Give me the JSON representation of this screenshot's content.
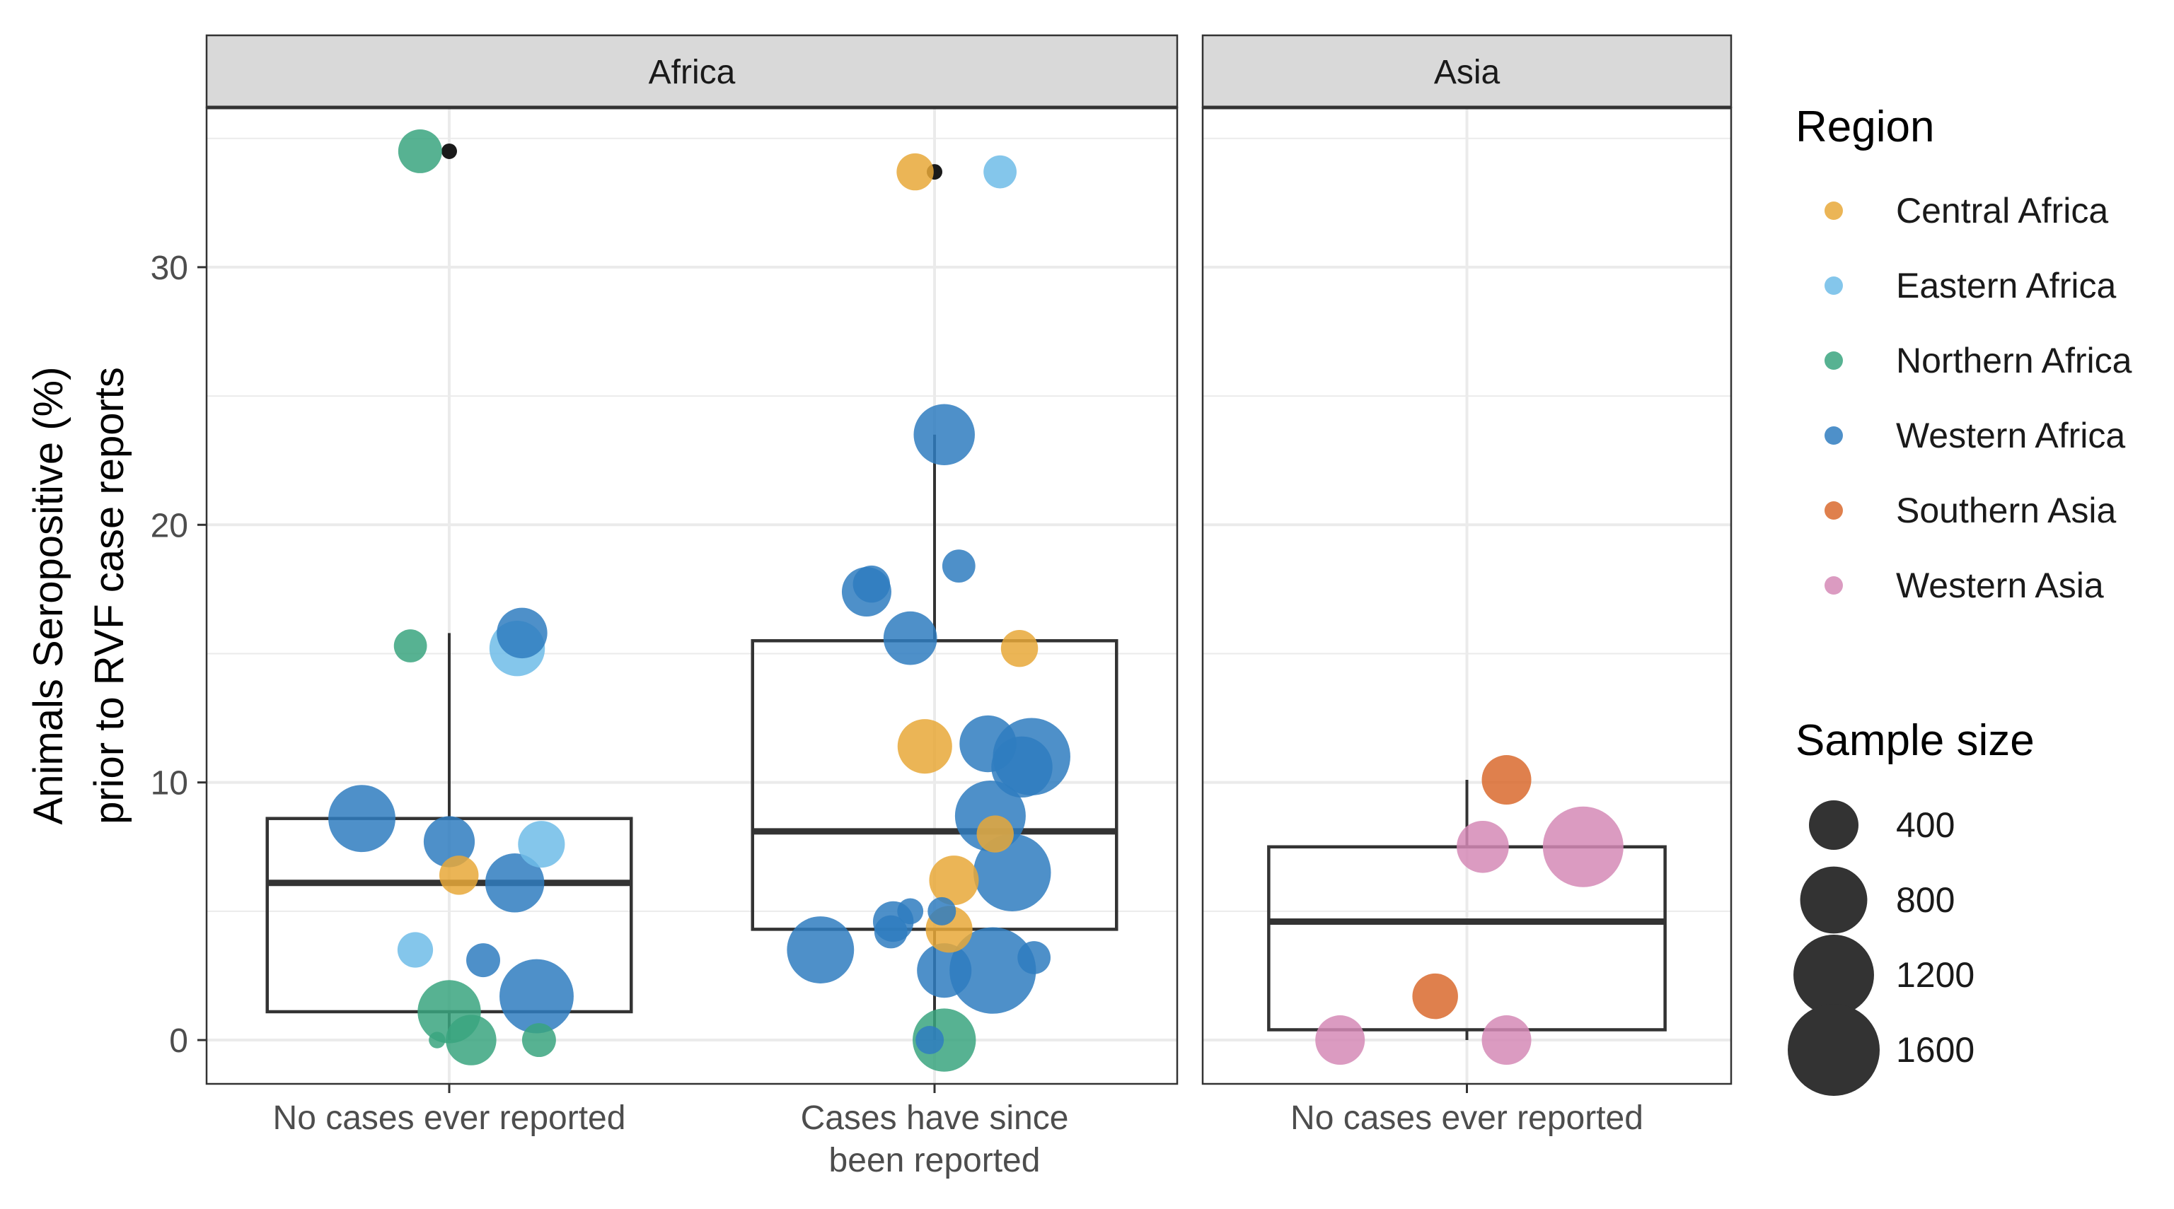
{
  "chart_data": {
    "type": "boxplot-jitter",
    "ylabel_lines": [
      "Animals Seropositive (%)",
      "prior to RVF case reports"
    ],
    "ylim": [
      -1.7,
      36.2
    ],
    "y_ticks": [
      0,
      10,
      20,
      30
    ],
    "y_tick_labels": [
      "0",
      "10",
      "20",
      "30"
    ],
    "y_minor": [
      5,
      15,
      25,
      35
    ],
    "panels": [
      {
        "title": "Africa",
        "groups": [
          {
            "label_lines": [
              "No cases ever reported"
            ],
            "box": {
              "q1": 1.1,
              "median": 6.1,
              "q3": 8.6,
              "whisker_low": 0,
              "whisker_high": 15.8
            },
            "outliers": [
              34.5
            ],
            "points": [
              {
                "y": 34.5,
                "region": "Northern Africa",
                "n": 300,
                "dx": -0.12
              },
              {
                "y": 15.3,
                "region": "Northern Africa",
                "n": 150,
                "dx": -0.16
              },
              {
                "y": 15.2,
                "region": "Eastern Africa",
                "n": 520,
                "dx": 0.28
              },
              {
                "y": 15.8,
                "region": "Western Africa",
                "n": 420,
                "dx": 0.3
              },
              {
                "y": 8.6,
                "region": "Western Africa",
                "n": 800,
                "dx": -0.36
              },
              {
                "y": 7.7,
                "region": "Western Africa",
                "n": 430,
                "dx": 0.0
              },
              {
                "y": 7.6,
                "region": "Eastern Africa",
                "n": 350,
                "dx": 0.38
              },
              {
                "y": 6.4,
                "region": "Central Africa",
                "n": 230,
                "dx": 0.04
              },
              {
                "y": 6.1,
                "region": "Western Africa",
                "n": 600,
                "dx": 0.27
              },
              {
                "y": 3.5,
                "region": "Eastern Africa",
                "n": 180,
                "dx": -0.14
              },
              {
                "y": 3.1,
                "region": "Western Africa",
                "n": 160,
                "dx": 0.14
              },
              {
                "y": 1.7,
                "region": "Western Africa",
                "n": 1000,
                "dx": 0.36
              },
              {
                "y": 1.1,
                "region": "Northern Africa",
                "n": 700,
                "dx": 0.0
              },
              {
                "y": 0.0,
                "region": "Northern Africa",
                "n": 420,
                "dx": 0.09
              },
              {
                "y": 0.0,
                "region": "Northern Africa",
                "n": 160,
                "dx": 0.37
              },
              {
                "y": 0.0,
                "region": "Northern Africa",
                "n": 20,
                "dx": -0.05
              }
            ]
          },
          {
            "label_lines": [
              "Cases have since",
              "been reported"
            ],
            "box": {
              "q1": 4.3,
              "median": 8.1,
              "q3": 15.5,
              "whisker_low": 0,
              "whisker_high": 23.5
            },
            "outliers": [
              33.7
            ],
            "points": [
              {
                "y": 33.7,
                "region": "Central Africa",
                "n": 200,
                "dx": -0.08
              },
              {
                "y": 33.7,
                "region": "Eastern Africa",
                "n": 150,
                "dx": 0.27
              },
              {
                "y": 23.5,
                "region": "Western Africa",
                "n": 650,
                "dx": 0.04
              },
              {
                "y": 18.4,
                "region": "Western Africa",
                "n": 150,
                "dx": 0.1
              },
              {
                "y": 17.7,
                "region": "Western Africa",
                "n": 200,
                "dx": -0.26
              },
              {
                "y": 17.4,
                "region": "Western Africa",
                "n": 400,
                "dx": -0.28
              },
              {
                "y": 15.6,
                "region": "Western Africa",
                "n": 480,
                "dx": -0.1
              },
              {
                "y": 15.2,
                "region": "Central Africa",
                "n": 200,
                "dx": 0.35
              },
              {
                "y": 11.5,
                "region": "Western Africa",
                "n": 550,
                "dx": 0.22
              },
              {
                "y": 11.4,
                "region": "Central Africa",
                "n": 500,
                "dx": -0.04
              },
              {
                "y": 11.0,
                "region": "Western Africa",
                "n": 1100,
                "dx": 0.4
              },
              {
                "y": 10.6,
                "region": "Western Africa",
                "n": 650,
                "dx": 0.36
              },
              {
                "y": 8.7,
                "region": "Western Africa",
                "n": 900,
                "dx": 0.23
              },
              {
                "y": 8.0,
                "region": "Central Africa",
                "n": 200,
                "dx": 0.25
              },
              {
                "y": 6.5,
                "region": "Western Africa",
                "n": 1100,
                "dx": 0.32
              },
              {
                "y": 6.2,
                "region": "Central Africa",
                "n": 400,
                "dx": 0.08
              },
              {
                "y": 5.0,
                "region": "Western Africa",
                "n": 80,
                "dx": -0.1
              },
              {
                "y": 5.0,
                "region": "Western Africa",
                "n": 100,
                "dx": 0.03
              },
              {
                "y": 4.6,
                "region": "Western Africa",
                "n": 250,
                "dx": -0.17
              },
              {
                "y": 4.3,
                "region": "Central Africa",
                "n": 350,
                "dx": 0.06
              },
              {
                "y": 4.2,
                "region": "Western Africa",
                "n": 150,
                "dx": -0.18
              },
              {
                "y": 3.5,
                "region": "Western Africa",
                "n": 800,
                "dx": -0.47
              },
              {
                "y": 3.2,
                "region": "Western Africa",
                "n": 150,
                "dx": 0.41
              },
              {
                "y": 2.7,
                "region": "Western Africa",
                "n": 1400,
                "dx": 0.24
              },
              {
                "y": 2.7,
                "region": "Western Africa",
                "n": 500,
                "dx": 0.04
              },
              {
                "y": 0.0,
                "region": "Northern Africa",
                "n": 700,
                "dx": 0.04
              },
              {
                "y": 0.0,
                "region": "Western Africa",
                "n": 100,
                "dx": -0.02
              }
            ]
          }
        ]
      },
      {
        "title": "Asia",
        "groups": [
          {
            "label_lines": [
              "No cases ever reported"
            ],
            "box": {
              "q1": 0.4,
              "median": 4.6,
              "q3": 7.5,
              "whisker_low": 0,
              "whisker_high": 10.1
            },
            "outliers": [],
            "points": [
              {
                "y": 10.1,
                "region": "Southern Asia",
                "n": 400,
                "dx": 0.15
              },
              {
                "y": 7.5,
                "region": "Western Asia",
                "n": 450,
                "dx": 0.06
              },
              {
                "y": 7.5,
                "region": "Western Asia",
                "n": 1200,
                "dx": 0.44
              },
              {
                "y": 1.7,
                "region": "Southern Asia",
                "n": 330,
                "dx": -0.12
              },
              {
                "y": 0.0,
                "region": "Western Asia",
                "n": 400,
                "dx": -0.48
              },
              {
                "y": 0.0,
                "region": "Western Asia",
                "n": 400,
                "dx": 0.15
              }
            ]
          }
        ]
      }
    ],
    "legend": {
      "region_title": "Region",
      "regions": [
        {
          "name": "Central Africa",
          "color": "#e8a838"
        },
        {
          "name": "Eastern Africa",
          "color": "#6ebce8"
        },
        {
          "name": "Northern Africa",
          "color": "#3aa57f"
        },
        {
          "name": "Western Africa",
          "color": "#2f7dbf"
        },
        {
          "name": "Southern Asia",
          "color": "#d96a2e"
        },
        {
          "name": "Western Asia",
          "color": "#d58ab6"
        }
      ],
      "size_title": "Sample size",
      "sizes": [
        400,
        800,
        1200,
        1600
      ],
      "size_labels": [
        "400",
        "800",
        "1200",
        "1600"
      ]
    },
    "colors": {
      "strip_fill": "#d9d9d9",
      "grid": "#ebebeb",
      "box_line": "#333333",
      "outlier": "#1a1a1a",
      "size_key": "#333333"
    }
  }
}
